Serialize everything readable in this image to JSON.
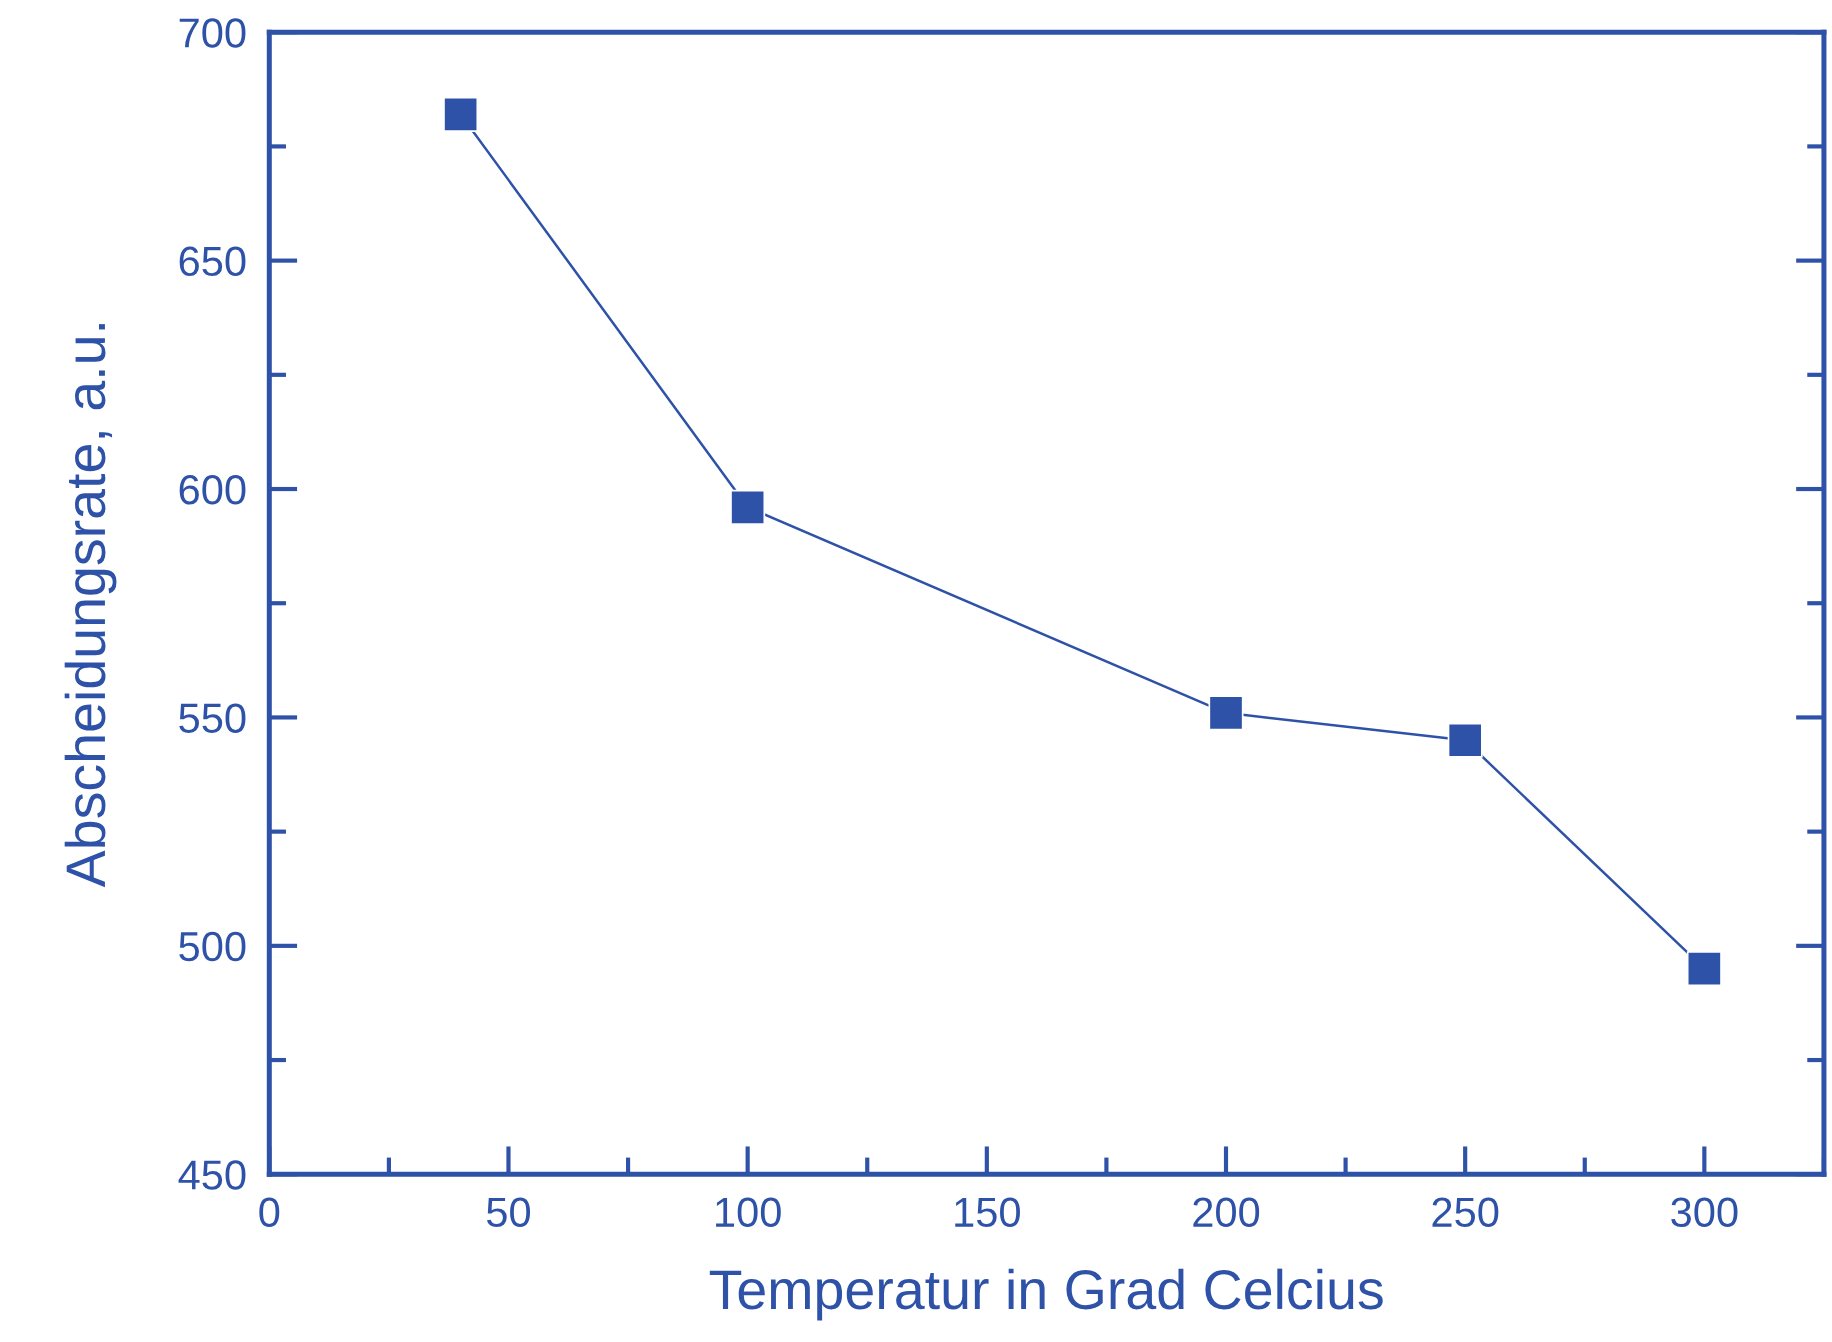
{
  "chart_data": {
    "type": "line",
    "xlabel": "Temperatur in Grad Celcius",
    "ylabel": "Abscheidungsrate, a.u.",
    "x": [
      40,
      100,
      200,
      250,
      300
    ],
    "series": [
      {
        "color": "#2e52a8",
        "values": [
          682,
          596,
          551,
          545,
          495
        ]
      }
    ],
    "xlim": [
      0,
      325
    ],
    "xticks": [
      0,
      50,
      100,
      150,
      200,
      250,
      300
    ],
    "ylim": [
      450,
      700
    ],
    "yticks": [
      450,
      500,
      550,
      600,
      650,
      700
    ],
    "marker": "square",
    "line_style": "solid",
    "grid": false
  }
}
